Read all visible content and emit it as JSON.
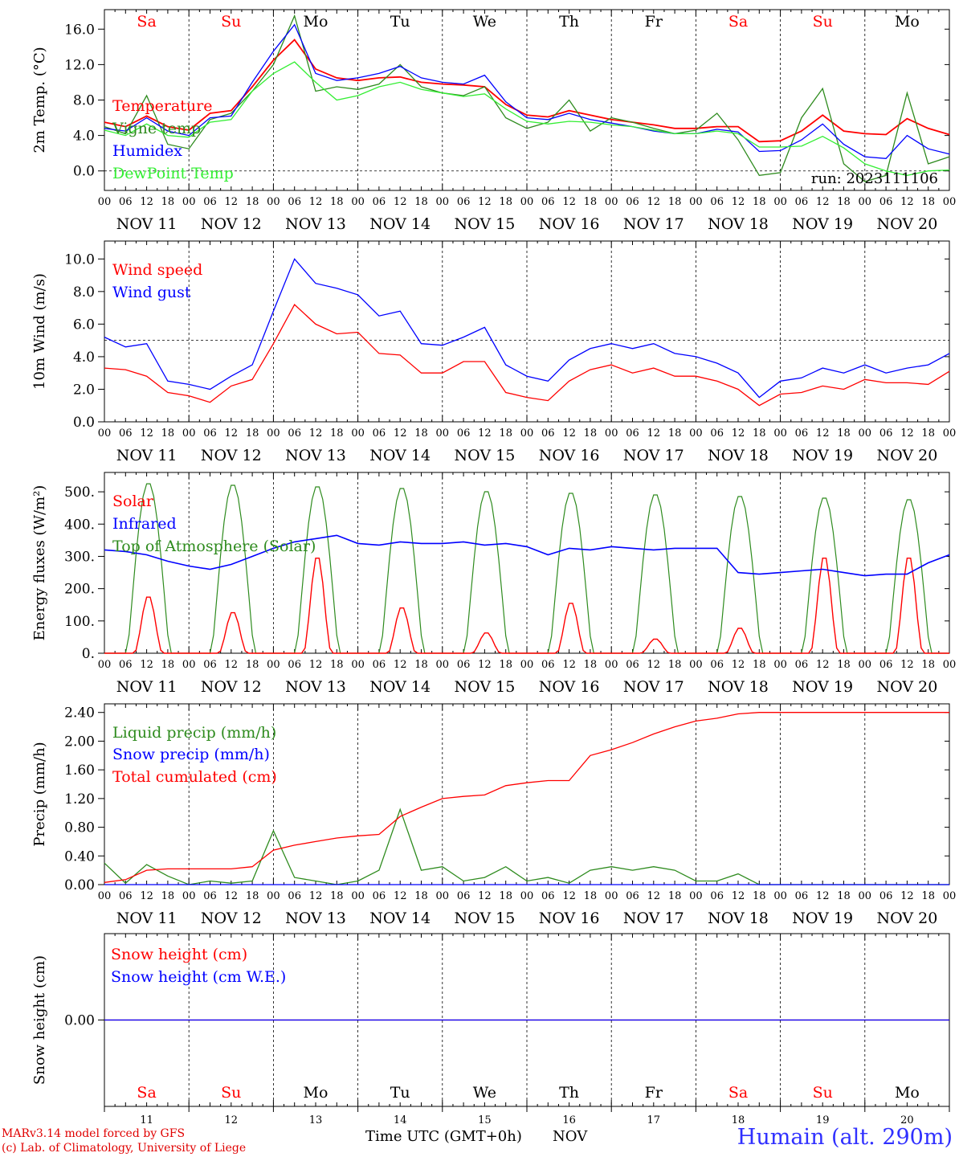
{
  "days": [
    "Sa",
    "Su",
    "Mo",
    "Tu",
    "We",
    "Th",
    "Fr",
    "Sa",
    "Su",
    "Mo"
  ],
  "day_colors": {
    "weekend": "#ff0000",
    "weekday": "#000000"
  },
  "weekend_flags": [
    true,
    true,
    false,
    false,
    false,
    false,
    false,
    true,
    true,
    false
  ],
  "date_labels": [
    "NOV 11",
    "NOV 12",
    "NOV 13",
    "NOV 14",
    "NOV 15",
    "NOV 16",
    "NOV 17",
    "NOV 18",
    "NOV 19",
    "NOV 20"
  ],
  "day_numbers": [
    "11",
    "12",
    "13",
    "14",
    "15",
    "16",
    "17",
    "18",
    "19",
    "20"
  ],
  "hour_ticks": [
    "00",
    "06",
    "12",
    "18"
  ],
  "final_tick": "00",
  "footer": {
    "model_line": "MARv3.14 model forced by GFS",
    "copyright_line": "(c) Lab. of Climatology, University of Liege",
    "time_axis_label": "Time UTC (GMT+0h)",
    "month": "NOV",
    "site": "Humain (alt. 290m)"
  },
  "chart_data": [
    {
      "type": "line",
      "ylabel": "2m Temp. (°C)",
      "ylim": [
        -2.2,
        18.2
      ],
      "yticks": [
        "0.0",
        "4.0",
        "8.0",
        "12.0",
        "16.0"
      ],
      "ytick_values": [
        0,
        4,
        8,
        12,
        16
      ],
      "dashed_y": 0,
      "annotation": "run: 2023111106",
      "x_hours": [
        0,
        6,
        12,
        18,
        24,
        30,
        36,
        42,
        48,
        54,
        60,
        66,
        72,
        78,
        84,
        90,
        96,
        102,
        108,
        114,
        120,
        126,
        132,
        138,
        144,
        150,
        156,
        162,
        168,
        174,
        180,
        186,
        192,
        198,
        204,
        210,
        216,
        222,
        228,
        234,
        240
      ],
      "series": [
        {
          "name": "Temperature",
          "color": "#ff0000",
          "values": [
            5.5,
            5.0,
            6.2,
            5.0,
            4.6,
            6.5,
            6.8,
            9.5,
            12.5,
            14.8,
            11.5,
            10.5,
            10.2,
            10.5,
            10.6,
            10.0,
            9.8,
            9.7,
            9.5,
            7.5,
            6.3,
            6.1,
            6.8,
            6.3,
            5.8,
            5.5,
            5.2,
            4.8,
            4.8,
            5.0,
            5.0,
            3.3,
            3.4,
            4.5,
            6.3,
            4.5,
            4.2,
            4.1,
            5.9,
            4.8,
            4.1
          ]
        },
        {
          "name": "Vigne temp",
          "color": "#2e8b1e",
          "values": [
            5.0,
            4.2,
            8.5,
            3.0,
            2.5,
            5.8,
            6.5,
            9.0,
            12.0,
            17.5,
            9.0,
            9.5,
            9.2,
            9.8,
            12.0,
            9.5,
            8.8,
            8.5,
            9.5,
            6.0,
            4.8,
            5.5,
            8.0,
            4.5,
            6.0,
            5.5,
            4.8,
            4.2,
            4.6,
            6.5,
            3.5,
            -0.5,
            -0.2,
            6.0,
            9.3,
            0.8,
            -1.2,
            -0.5,
            8.8,
            0.8,
            1.6
          ]
        },
        {
          "name": "Humidex",
          "color": "#0000ff",
          "values": [
            4.8,
            4.5,
            6.0,
            4.5,
            4.0,
            6.0,
            6.2,
            10.0,
            13.5,
            16.5,
            11.0,
            10.2,
            10.5,
            11.0,
            11.8,
            10.5,
            10.0,
            9.8,
            10.8,
            7.8,
            6.0,
            5.8,
            6.5,
            5.8,
            5.4,
            5.0,
            4.5,
            4.2,
            4.2,
            4.7,
            4.4,
            2.2,
            2.3,
            3.5,
            5.3,
            3.0,
            1.6,
            1.4,
            4.0,
            2.5,
            1.9
          ]
        },
        {
          "name": "DewPoint Temp",
          "color": "#33ee33",
          "values": [
            4.6,
            4.0,
            5.3,
            4.0,
            3.8,
            5.5,
            5.8,
            9.0,
            11.0,
            12.3,
            10.0,
            8.0,
            8.5,
            9.5,
            10.0,
            9.2,
            8.8,
            8.4,
            8.7,
            7.0,
            5.6,
            5.3,
            5.6,
            5.5,
            5.2,
            5.0,
            4.6,
            4.2,
            4.2,
            4.5,
            4.2,
            2.7,
            2.7,
            2.8,
            3.9,
            2.6,
            0.8,
            0.0,
            -0.5,
            0.0,
            0.1
          ]
        }
      ]
    },
    {
      "type": "line",
      "ylabel": "10m Wind (m/s)",
      "ylim": [
        0,
        11.1
      ],
      "yticks": [
        "0.0",
        "2.0",
        "4.0",
        "6.0",
        "8.0",
        "10.0"
      ],
      "ytick_values": [
        0,
        2,
        4,
        6,
        8,
        10
      ],
      "dashed_y": 5,
      "x_hours": [
        0,
        6,
        12,
        18,
        24,
        30,
        36,
        42,
        48,
        54,
        60,
        66,
        72,
        78,
        84,
        90,
        96,
        102,
        108,
        114,
        120,
        126,
        132,
        138,
        144,
        150,
        156,
        162,
        168,
        174,
        180,
        186,
        192,
        198,
        204,
        210,
        216,
        222,
        228,
        234,
        240
      ],
      "series": [
        {
          "name": "Wind speed",
          "color": "#ff0000",
          "values": [
            3.3,
            3.2,
            2.8,
            1.8,
            1.6,
            1.2,
            2.2,
            2.6,
            4.8,
            7.2,
            6.0,
            5.4,
            5.5,
            4.2,
            4.1,
            3.0,
            3.0,
            3.7,
            3.7,
            1.8,
            1.5,
            1.3,
            2.5,
            3.2,
            3.5,
            3.0,
            3.3,
            2.8,
            2.8,
            2.5,
            2.0,
            1.0,
            1.7,
            1.8,
            2.2,
            2.0,
            2.6,
            2.4,
            2.4,
            2.3,
            3.1
          ]
        },
        {
          "name": "Wind gust",
          "color": "#0000ff",
          "values": [
            5.2,
            4.6,
            4.8,
            2.5,
            2.3,
            2.0,
            2.8,
            3.5,
            6.8,
            10.0,
            8.5,
            8.2,
            7.8,
            6.5,
            6.8,
            4.8,
            4.7,
            5.2,
            5.8,
            3.5,
            2.8,
            2.5,
            3.8,
            4.5,
            4.8,
            4.5,
            4.8,
            4.2,
            4.0,
            3.6,
            3.0,
            1.5,
            2.5,
            2.7,
            3.3,
            3.0,
            3.5,
            3.0,
            3.3,
            3.5,
            4.2
          ]
        }
      ]
    },
    {
      "type": "line",
      "ylabel": "Energy fluxes (W/m²)",
      "ylim": [
        0,
        560
      ],
      "yticks": [
        "0.",
        "100.",
        "200.",
        "300.",
        "400.",
        "500."
      ],
      "ytick_values": [
        0,
        100,
        200,
        300,
        400,
        500
      ],
      "x_hours_note": "values given per 1-hour step from 00 NOV 11 to 00 NOV 21",
      "daily_peaks": {
        "solar": [
          180,
          130,
          305,
          145,
          65,
          160,
          45,
          80,
          305,
          305
        ],
        "top_of_atmosphere": [
          530,
          525,
          520,
          515,
          505,
          500,
          495,
          490,
          485,
          480
        ]
      },
      "series": [
        {
          "name": "Solar",
          "color": "#ff0000"
        },
        {
          "name": "Infrared",
          "color": "#0000ff",
          "values": [
            320,
            315,
            305,
            285,
            270,
            260,
            275,
            300,
            325,
            345,
            355,
            365,
            340,
            335,
            345,
            340,
            340,
            345,
            335,
            340,
            330,
            305,
            325,
            320,
            330,
            325,
            320,
            325,
            325,
            325,
            250,
            245,
            250,
            255,
            260,
            250,
            240,
            245,
            245,
            280,
            305
          ]
        },
        {
          "name": "Top of Atmosphere (Solar)",
          "color": "#2e8b1e"
        }
      ]
    },
    {
      "type": "line",
      "ylabel": "Precip (mm/h)",
      "ylim": [
        0,
        2.52
      ],
      "yticks": [
        "0.00",
        "0.40",
        "0.80",
        "1.20",
        "1.60",
        "2.00",
        "2.40"
      ],
      "ytick_values": [
        0,
        0.4,
        0.8,
        1.2,
        1.6,
        2.0,
        2.4
      ],
      "x_hours": [
        0,
        6,
        12,
        18,
        24,
        30,
        36,
        42,
        48,
        54,
        60,
        66,
        72,
        78,
        84,
        90,
        96,
        102,
        108,
        114,
        120,
        126,
        132,
        138,
        144,
        150,
        156,
        162,
        168,
        174,
        180,
        186,
        192,
        198,
        204,
        210,
        216,
        222,
        228,
        234,
        240
      ],
      "series": [
        {
          "name": "Liquid precip (mm/h)",
          "color": "#2e8b1e",
          "values": [
            0.3,
            0.02,
            0.28,
            0.12,
            0.0,
            0.05,
            0.02,
            0.05,
            0.75,
            0.1,
            0.05,
            0.0,
            0.05,
            0.2,
            1.05,
            0.2,
            0.25,
            0.05,
            0.1,
            0.25,
            0.05,
            0.1,
            0.02,
            0.2,
            0.25,
            0.2,
            0.25,
            0.2,
            0.05,
            0.05,
            0.15,
            0.0,
            0.0,
            0.0,
            0.0,
            0.0,
            0.0,
            0.0,
            0.0,
            0.0,
            0.0
          ]
        },
        {
          "name": "Snow precip (mm/h)",
          "color": "#0000ff",
          "values": [
            0,
            0,
            0,
            0,
            0,
            0,
            0,
            0,
            0,
            0,
            0,
            0,
            0,
            0,
            0,
            0,
            0,
            0,
            0,
            0,
            0,
            0,
            0,
            0,
            0,
            0,
            0,
            0,
            0,
            0,
            0,
            0,
            0,
            0,
            0,
            0,
            0,
            0,
            0,
            0,
            0
          ]
        },
        {
          "name": "Total cumulated (cm)",
          "color": "#ff0000",
          "values": [
            0.03,
            0.07,
            0.2,
            0.22,
            0.22,
            0.22,
            0.22,
            0.25,
            0.48,
            0.55,
            0.6,
            0.65,
            0.68,
            0.7,
            0.95,
            1.08,
            1.2,
            1.23,
            1.25,
            1.38,
            1.42,
            1.45,
            1.45,
            1.8,
            1.88,
            1.98,
            2.1,
            2.2,
            2.28,
            2.32,
            2.38,
            2.4,
            2.4,
            2.4,
            2.4,
            2.4,
            2.4,
            2.4,
            2.4,
            2.4,
            2.4
          ]
        }
      ]
    },
    {
      "type": "line",
      "ylabel": "Snow height (cm)",
      "ylim": [
        -1,
        1
      ],
      "yticks": [
        "0.00"
      ],
      "ytick_values": [
        0
      ],
      "x_hours": [
        0,
        240
      ],
      "series": [
        {
          "name": "Snow height (cm)",
          "color": "#ff0000",
          "values": [
            0,
            0
          ]
        },
        {
          "name": "Snow height (cm W.E.)",
          "color": "#0000ff",
          "values": [
            0,
            0
          ]
        }
      ]
    }
  ]
}
